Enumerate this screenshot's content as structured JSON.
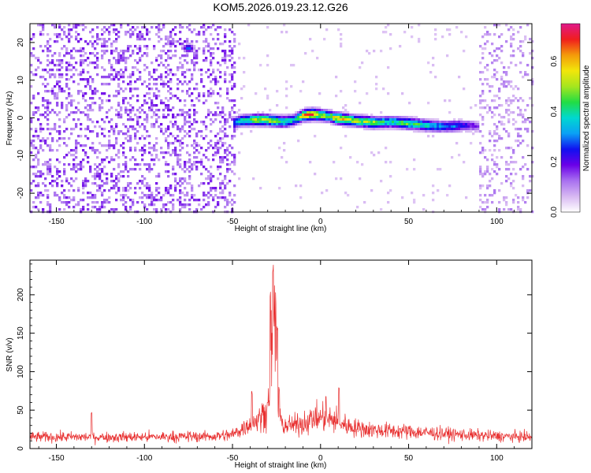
{
  "figure": {
    "title": "KOM5.2026.019.23.12.G26"
  },
  "colors": {
    "frame": "#000000",
    "snr_line": "#e83030",
    "colormap": [
      "#ffffff",
      "#d7b8f2",
      "#a870f0",
      "#6a00e8",
      "#1010f0",
      "#0aa0f5",
      "#00d8d0",
      "#22dd44",
      "#a6e61e",
      "#f2e60a",
      "#f49a0a",
      "#f01e1e",
      "#e0198a"
    ]
  },
  "chart_data": [
    {
      "type": "heatmap",
      "name": "spectrogram",
      "xlabel": "Height of straight line (km)",
      "ylabel": "Frequency (Hz)",
      "xlim": [
        -165,
        120
      ],
      "ylim": [
        -25,
        25
      ],
      "xticks": [
        -150,
        -100,
        -50,
        0,
        50,
        100
      ],
      "xtick_labels": [
        "-150",
        "-100",
        "-50",
        "0",
        "50",
        "100"
      ],
      "yticks": [
        -20,
        -10,
        0,
        10,
        20
      ],
      "ytick_labels": [
        "-20",
        "-10",
        "0",
        "10",
        "20"
      ],
      "colorbar": {
        "label": "Normalized spectral amplitude",
        "range": [
          0.0,
          0.75
        ],
        "ticks": [
          0.0,
          0.2,
          0.4,
          0.6
        ],
        "tick_labels": [
          "0.0",
          "0.2",
          "0.4",
          "0.6"
        ]
      },
      "noise_level_left": 0.12,
      "noise_level_right": 0.08,
      "noise_region_left": [
        -165,
        -48
      ],
      "noise_region_right": [
        90,
        120
      ],
      "ridge": {
        "x": [
          -50,
          -45,
          -40,
          -35,
          -30,
          -25,
          -20,
          -15,
          -10,
          -5,
          0,
          5,
          10,
          15,
          20,
          25,
          30,
          35,
          40,
          45,
          50,
          55,
          60,
          65,
          70,
          75,
          80,
          85,
          90
        ],
        "freq": [
          -1.5,
          -0.8,
          -0.6,
          -0.5,
          -0.6,
          -0.9,
          -1.0,
          -0.6,
          0.6,
          0.9,
          0.7,
          0.4,
          -0.2,
          -0.5,
          -0.8,
          -1.0,
          -1.2,
          -1.2,
          -1.1,
          -1.3,
          -1.5,
          -1.7,
          -2.0,
          -2.2,
          -2.3,
          -2.2,
          -2.0,
          -2.0,
          -2.3
        ],
        "amplitude": [
          0.3,
          0.38,
          0.45,
          0.52,
          0.5,
          0.45,
          0.42,
          0.35,
          0.55,
          0.66,
          0.5,
          0.45,
          0.6,
          0.52,
          0.5,
          0.48,
          0.5,
          0.42,
          0.4,
          0.42,
          0.45,
          0.42,
          0.38,
          0.34,
          0.3,
          0.3,
          0.25,
          0.2,
          0.15
        ]
      },
      "hotspots": [
        {
          "x": -37,
          "freq": -0.4,
          "amplitude": 0.58
        },
        {
          "x": -8,
          "freq": 0.7,
          "amplitude": 0.72
        },
        {
          "x": 2,
          "freq": 0.5,
          "amplitude": 0.55
        },
        {
          "x": 12,
          "freq": -0.4,
          "amplitude": 0.6
        },
        {
          "x": 20,
          "freq": -0.9,
          "amplitude": 0.5
        },
        {
          "x": -75,
          "freq": 18.5,
          "amplitude": 0.3
        }
      ]
    },
    {
      "type": "line",
      "name": "snr",
      "xlabel": "Height of straight line (km)",
      "ylabel": "SNR (v/v)",
      "xlim": [
        -165,
        120
      ],
      "ylim": [
        0,
        245
      ],
      "xticks": [
        -150,
        -100,
        -50,
        0,
        50,
        100
      ],
      "xtick_labels": [
        "-150",
        "-100",
        "-50",
        "0",
        "50",
        "100"
      ],
      "yticks": [
        0,
        50,
        100,
        150,
        200
      ],
      "ytick_labels": [
        "0",
        "50",
        "100",
        "150",
        "200"
      ],
      "baseline_profile": {
        "x": [
          -165,
          -100,
          -60,
          -50,
          -45,
          -40,
          -35,
          -30,
          -28,
          -27,
          -26,
          -25,
          -24,
          -22,
          -20,
          -15,
          -10,
          -5,
          0,
          5,
          10,
          15,
          20,
          30,
          50,
          80,
          100,
          120
        ],
        "y": [
          15,
          15,
          16,
          18,
          25,
          33,
          38,
          52,
          130,
          150,
          160,
          120,
          45,
          32,
          30,
          30,
          33,
          38,
          40,
          38,
          35,
          30,
          27,
          24,
          22,
          18,
          16,
          15
        ]
      },
      "peaks": [
        {
          "x": -27.0,
          "y": 240
        },
        {
          "x": -28.5,
          "y": 205
        },
        {
          "x": -25.5,
          "y": 190
        },
        {
          "x": -24.5,
          "y": 160
        },
        {
          "x": -39,
          "y": 75
        },
        {
          "x": -23.5,
          "y": 80
        },
        {
          "x": 10.5,
          "y": 80
        },
        {
          "x": 3,
          "y": 72
        },
        {
          "x": -130,
          "y": 48
        }
      ]
    }
  ]
}
